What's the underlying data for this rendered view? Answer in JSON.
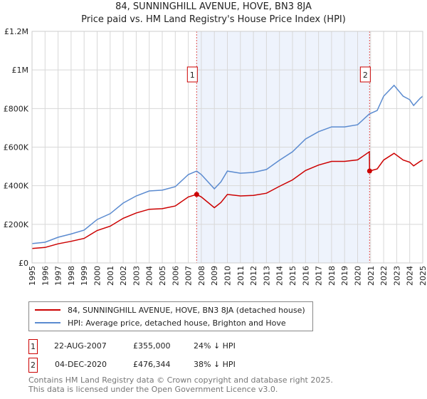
{
  "chart_data": {
    "type": "line",
    "title": "84, SUNNINGHILL AVENUE, HOVE, BN3 8JA",
    "subtitle": "Price paid vs. HM Land Registry's House Price Index (HPI)",
    "xlim": [
      1995,
      2025
    ],
    "ylim": [
      0,
      1200000
    ],
    "y_ticks": [
      {
        "v": 0,
        "label": "£0"
      },
      {
        "v": 200000,
        "label": "£200K"
      },
      {
        "v": 400000,
        "label": "£400K"
      },
      {
        "v": 600000,
        "label": "£600K"
      },
      {
        "v": 800000,
        "label": "£800K"
      },
      {
        "v": 1000000,
        "label": "£1M"
      },
      {
        "v": 1200000,
        "label": "£1.2M"
      }
    ],
    "x_ticks": [
      "1995",
      "1996",
      "1997",
      "1998",
      "1999",
      "2000",
      "2001",
      "2002",
      "2003",
      "2004",
      "2005",
      "2006",
      "2007",
      "2008",
      "2009",
      "2010",
      "2011",
      "2012",
      "2013",
      "2014",
      "2015",
      "2016",
      "2017",
      "2018",
      "2019",
      "2020",
      "2021",
      "2022",
      "2023",
      "2024",
      "2025"
    ],
    "grid": true,
    "shaded_range": [
      2007.64,
      2020.92
    ],
    "series": [
      {
        "name": "84, SUNNINGHILL AVENUE, HOVE, BN3 8JA (detached house)",
        "color": "#cc0000",
        "x": [
          1995,
          1996,
          1997,
          1998,
          1999,
          2000,
          2001,
          2002,
          2003,
          2004,
          2005,
          2006,
          2007,
          2007.64,
          2008,
          2009,
          2009.5,
          2010,
          2011,
          2012,
          2013,
          2014,
          2015,
          2016,
          2017,
          2018,
          2019,
          2020,
          2020.9,
          2020.92,
          2021.5,
          2022,
          2022.8,
          2023.5,
          2024,
          2024.3,
          2024.8,
          2025
        ],
        "values": [
          75000,
          80000,
          99000,
          112000,
          127000,
          168000,
          190000,
          231000,
          259000,
          278000,
          281000,
          295000,
          342000,
          355000,
          342000,
          286000,
          313000,
          355000,
          347000,
          350000,
          361000,
          397000,
          430000,
          479000,
          507000,
          526000,
          526000,
          534000,
          576000,
          476344,
          487000,
          533000,
          568000,
          533000,
          522000,
          503000,
          526000,
          533000
        ]
      },
      {
        "name": "HPI: Average price, detached house, Brighton and Hove",
        "color": "#5b8bd0",
        "x": [
          1995,
          1996,
          1997,
          1998,
          1999,
          2000,
          2001,
          2002,
          2003,
          2004,
          2005,
          2006,
          2007,
          2007.64,
          2008,
          2009,
          2009.5,
          2010,
          2011,
          2012,
          2013,
          2014,
          2015,
          2016,
          2017,
          2018,
          2019,
          2020,
          2020.9,
          2021.5,
          2022,
          2022.8,
          2023.5,
          2024,
          2024.3,
          2024.8,
          2025
        ],
        "values": [
          100000,
          107000,
          133000,
          150000,
          170000,
          225000,
          255000,
          310000,
          347000,
          373000,
          377000,
          395000,
          458000,
          476000,
          458000,
          384000,
          420000,
          476000,
          465000,
          469000,
          484000,
          532000,
          576000,
          642000,
          680000,
          705000,
          705000,
          716000,
          772000,
          790000,
          864000,
          920000,
          864000,
          846000,
          816000,
          853000,
          864000
        ]
      }
    ],
    "sales": [
      {
        "n": "1",
        "x": 2007.64,
        "date": "22-AUG-2007",
        "price": "£355,000",
        "value": 355000,
        "hpi": "24% ↓ HPI"
      },
      {
        "n": "2",
        "x": 2020.92,
        "date": "04-DEC-2020",
        "price": "£476,344",
        "value": 476344,
        "hpi": "38% ↓ HPI"
      }
    ],
    "legend_placement": "below"
  },
  "footer": [
    "Contains HM Land Registry data © Crown copyright and database right 2025.",
    "This data is licensed under the Open Government Licence v3.0."
  ]
}
